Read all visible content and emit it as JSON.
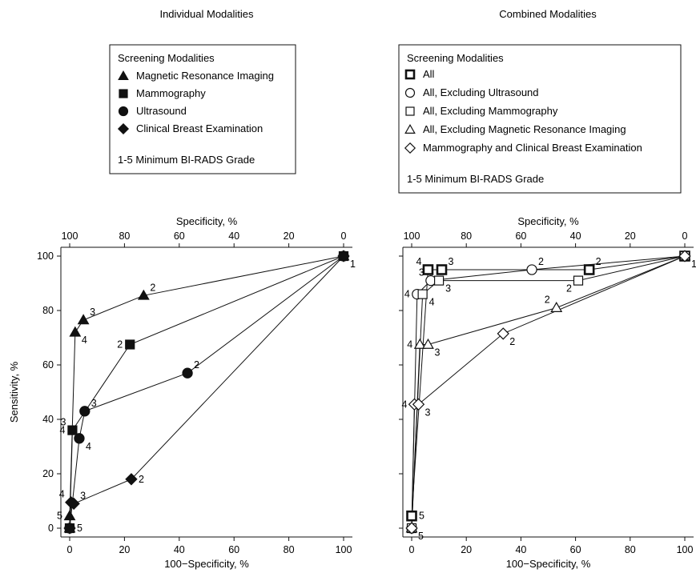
{
  "chart_data": [
    {
      "type": "line",
      "title": "Individual Modalities",
      "xlabel": "100−Specificity, %",
      "ylabel": "Sensitivity, %",
      "x2label": "Specificity, %",
      "xlim": [
        0,
        100
      ],
      "ylim": [
        0,
        100
      ],
      "x_ticks": [
        "0",
        "20",
        "40",
        "60",
        "80",
        "100"
      ],
      "y_ticks": [
        "0",
        "20",
        "40",
        "60",
        "80",
        "100"
      ],
      "x2_ticks": [
        "100",
        "80",
        "60",
        "40",
        "20",
        "0"
      ],
      "legend": {
        "title": "Screening Modalities",
        "footnote": "1-5 Minimum BI-RADS Grade"
      },
      "series": [
        {
          "name": "Magnetic Resonance Imaging",
          "marker": "triangle",
          "fill": "filled",
          "points": [
            {
              "x": 0,
              "y": 0,
              "label": ""
            },
            {
              "x": 0,
              "y": 4.5,
              "label": "5"
            },
            {
              "x": 2,
              "y": 72,
              "label": "4"
            },
            {
              "x": 5,
              "y": 76.5,
              "label": "3"
            },
            {
              "x": 27,
              "y": 85.5,
              "label": "2"
            },
            {
              "x": 100,
              "y": 100,
              "label": ""
            }
          ]
        },
        {
          "name": "Mammography",
          "marker": "square",
          "fill": "filled",
          "points": [
            {
              "x": 0,
              "y": 0,
              "label": ""
            },
            {
              "x": 1,
              "y": 36,
              "label": "4"
            },
            {
              "x": 22,
              "y": 67.5,
              "label": "2"
            },
            {
              "x": 100,
              "y": 100,
              "label": ""
            }
          ]
        },
        {
          "name": "Ultrasound",
          "marker": "circle",
          "fill": "filled",
          "points": [
            {
              "x": 0,
              "y": 0,
              "label": "5"
            },
            {
              "x": 3.5,
              "y": 33,
              "label": "4"
            },
            {
              "x": 5.5,
              "y": 43,
              "label": "3"
            },
            {
              "x": 43,
              "y": 57,
              "label": "2"
            },
            {
              "x": 100,
              "y": 100,
              "label": "1"
            }
          ]
        },
        {
          "name": "Clinical Breast Examination",
          "marker": "diamond",
          "fill": "filled",
          "points": [
            {
              "x": 0,
              "y": 0,
              "label": ""
            },
            {
              "x": 0.5,
              "y": 9.5,
              "label": "4"
            },
            {
              "x": 1.5,
              "y": 9,
              "label": "3"
            },
            {
              "x": 22.5,
              "y": 18,
              "label": "2"
            },
            {
              "x": 100,
              "y": 100,
              "label": ""
            }
          ]
        }
      ],
      "extra_labels": [
        {
          "x": 1,
          "y": 36,
          "text": "3",
          "pos": "ul"
        }
      ]
    },
    {
      "type": "line",
      "title": "Combined Modalities",
      "xlabel": "100−Specificity, %",
      "ylabel": "",
      "x2label": "Specificity, %",
      "xlim": [
        0,
        100
      ],
      "ylim": [
        0,
        100
      ],
      "x_ticks": [
        "0",
        "20",
        "40",
        "60",
        "80",
        "100"
      ],
      "x2_ticks": [
        "100",
        "80",
        "60",
        "40",
        "20",
        "0"
      ],
      "legend": {
        "title": "Screening Modalities",
        "footnote": "1-5 Minimum BI-RADS Grade"
      },
      "series": [
        {
          "name": "All",
          "marker": "square",
          "fill": "bold-open",
          "points": [
            {
              "x": 0,
              "y": 4.5,
              "label": "5"
            },
            {
              "x": 6,
              "y": 95,
              "label": "4"
            },
            {
              "x": 11,
              "y": 95,
              "label": "3"
            },
            {
              "x": 65,
              "y": 95,
              "label": "2"
            },
            {
              "x": 100,
              "y": 100,
              "label": ""
            }
          ]
        },
        {
          "name": "All, Excluding Ultrasound",
          "marker": "circle",
          "fill": "open",
          "points": [
            {
              "x": 0,
              "y": 0,
              "label": ""
            },
            {
              "x": 2,
              "y": 86,
              "label": "4"
            },
            {
              "x": 7,
              "y": 91,
              "label": "3"
            },
            {
              "x": 44,
              "y": 95,
              "label": "2"
            },
            {
              "x": 100,
              "y": 100,
              "label": ""
            }
          ]
        },
        {
          "name": "All, Excluding Mammography",
          "marker": "square",
          "fill": "open",
          "points": [
            {
              "x": 0,
              "y": 0,
              "label": ""
            },
            {
              "x": 4,
              "y": 86,
              "label": "4"
            },
            {
              "x": 10,
              "y": 91,
              "label": "3"
            },
            {
              "x": 61,
              "y": 91,
              "label": "2"
            },
            {
              "x": 100,
              "y": 100,
              "label": "1"
            }
          ]
        },
        {
          "name": "All, Excluding Magnetic Resonance Imaging",
          "marker": "triangle",
          "fill": "open",
          "points": [
            {
              "x": 0,
              "y": 0,
              "label": ""
            },
            {
              "x": 3,
              "y": 67.5,
              "label": "4"
            },
            {
              "x": 6,
              "y": 67.5,
              "label": "3"
            },
            {
              "x": 53,
              "y": 81,
              "label": "2"
            },
            {
              "x": 100,
              "y": 100,
              "label": ""
            }
          ]
        },
        {
          "name": "Mammography and Clinical Breast Examination",
          "marker": "diamond",
          "fill": "open",
          "points": [
            {
              "x": 0,
              "y": 0,
              "label": "5"
            },
            {
              "x": 1,
              "y": 45.5,
              "label": "4"
            },
            {
              "x": 2.5,
              "y": 45.5,
              "label": "3"
            },
            {
              "x": 33.5,
              "y": 71.5,
              "label": "2"
            },
            {
              "x": 100,
              "y": 100,
              "label": ""
            }
          ]
        }
      ],
      "extra_labels": []
    }
  ]
}
